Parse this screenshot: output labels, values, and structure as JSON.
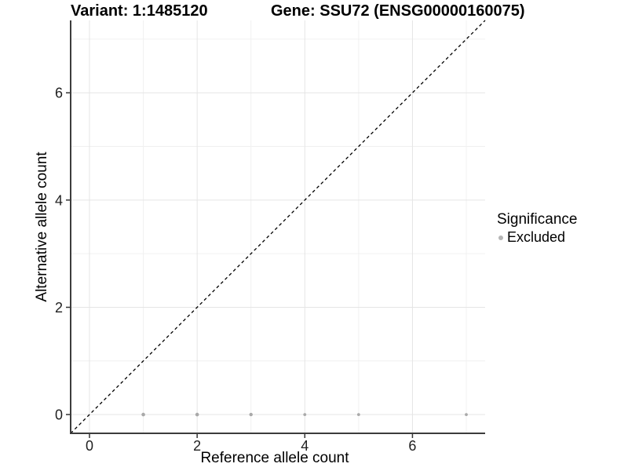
{
  "figure": {
    "title_left": "Variant: 1:1485120",
    "title_right": "Gene: SSU72 (ENSG00000160075)"
  },
  "legend": {
    "title": "Significance",
    "entries": [
      {
        "label": "Excluded",
        "color": "#b5b5b5"
      }
    ]
  },
  "chart_data": {
    "type": "scatter",
    "title_left": "Variant: 1:1485120",
    "title_right": "Gene: SSU72 (ENSG00000160075)",
    "xlabel": "Reference allele count",
    "ylabel": "Alternative allele count",
    "xlim": [
      -0.35,
      7.35
    ],
    "ylim": [
      -0.35,
      7.35
    ],
    "x_ticks": [
      0,
      2,
      4,
      6
    ],
    "y_ticks": [
      0,
      2,
      4,
      6
    ],
    "x_minor_gridlines": [
      1,
      3,
      5,
      7
    ],
    "y_minor_gridlines": [
      1,
      3,
      5,
      7
    ],
    "grid": "on",
    "legend_position": "right",
    "series": [
      {
        "name": "Excluded",
        "marker": "circle",
        "color": "#a9a9a9",
        "points": [
          {
            "x": 1,
            "y": 0,
            "r": 2.3
          },
          {
            "x": 2,
            "y": 0,
            "r": 2.3
          },
          {
            "x": 3,
            "y": 0,
            "r": 2.2
          },
          {
            "x": 4,
            "y": 0,
            "r": 1.9
          },
          {
            "x": 5,
            "y": 0,
            "r": 1.9
          },
          {
            "x": 7,
            "y": 0,
            "r": 1.9
          }
        ]
      }
    ],
    "reference_line": {
      "kind": "identity",
      "style": "dashed",
      "color": "#000000"
    },
    "style_colors": {
      "background": "#ffffff",
      "grid_major": "#e5e5e5",
      "grid_minor": "#f0f0f0",
      "axis_line": "#3c3c3c",
      "tick_mark": "#333333",
      "tick_text": "#1f1f1f"
    }
  }
}
